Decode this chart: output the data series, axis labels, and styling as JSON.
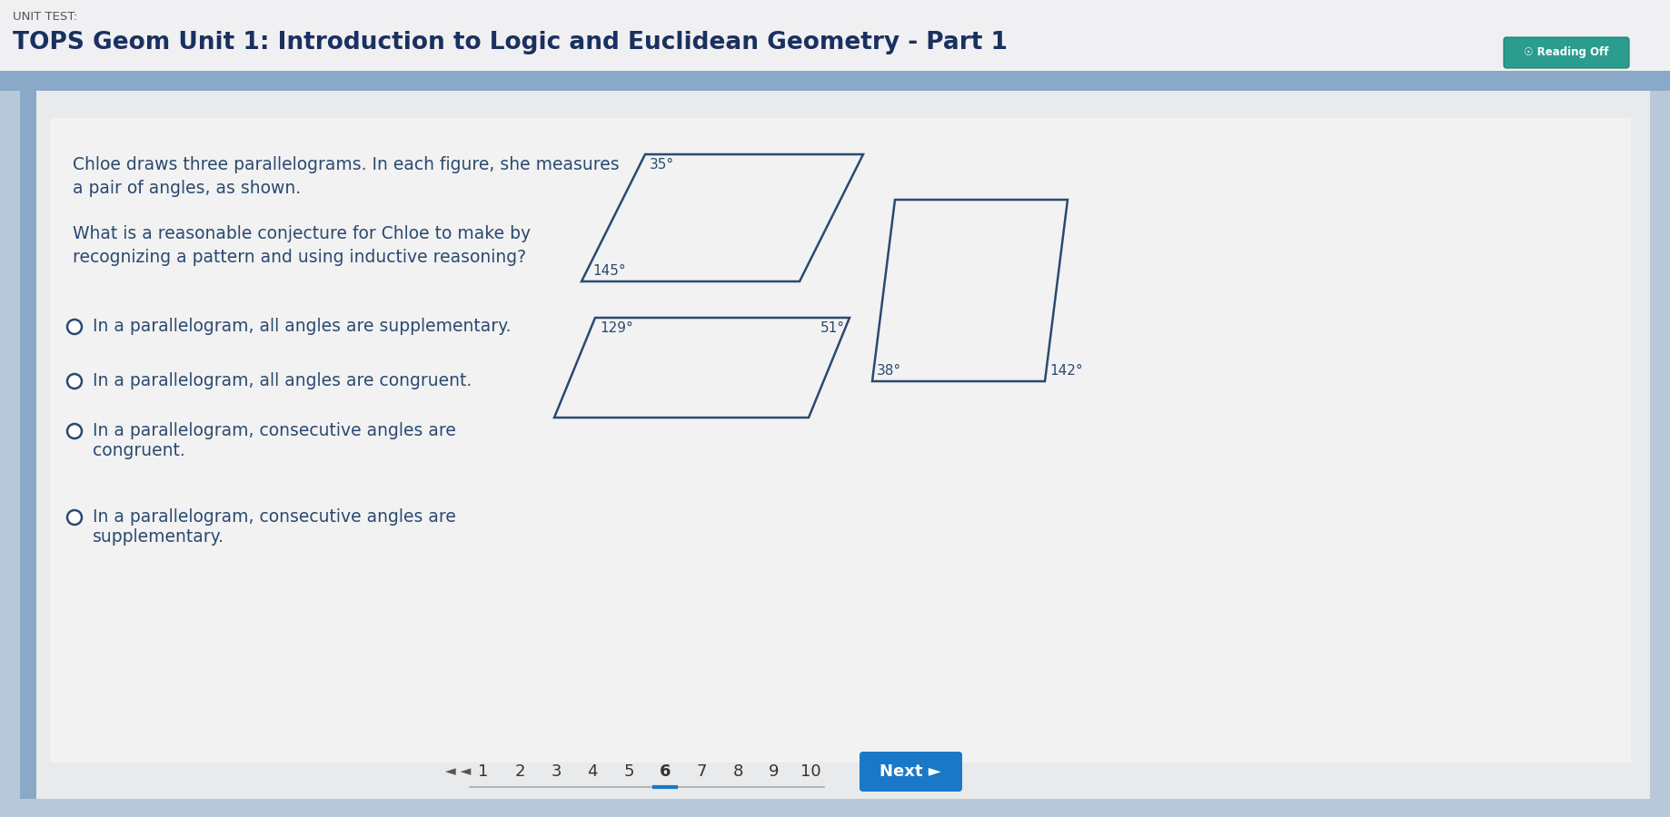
{
  "bg_color": "#b8c8d8",
  "outer_border_color": "#8aa0b8",
  "card_color": "#e8eaec",
  "inner_card_color": "#f2f2f2",
  "header_bg": "#f0f0f0",
  "unit_test_label": "UNIT TEST:",
  "title": "TOPS Geom Unit 1: Introduction to Logic and Euclidean Geometry - Part 1",
  "reading_btn_text": "☉ Reading Off",
  "question_text1": "Chloe draws three parallelograms. In each figure, she measures",
  "question_text2": "a pair of angles, as shown.",
  "prompt_text1": "What is a reasonable conjecture for Chloe to make by",
  "prompt_text2": "recognizing a pattern and using inductive reasoning?",
  "options": [
    "In a parallelogram, all angles are supplementary.",
    "In a parallelogram, all angles are congruent.",
    "In a parallelogram, consecutive angles are\ncongruent.",
    "In a parallelogram, consecutive angles are\nsupplementary."
  ],
  "para1_angles": [
    "35°",
    "145°"
  ],
  "para2_angles": [
    "129°",
    "51°"
  ],
  "para3_angles": [
    "38°",
    "142°"
  ],
  "page_numbers": [
    "1",
    "2",
    "3",
    "4",
    "5",
    "6",
    "7",
    "8",
    "9",
    "10"
  ],
  "current_page": "6",
  "next_btn_text": "Next ►",
  "text_color": "#2a4a70",
  "shape_color": "#2a4a70",
  "title_color": "#1a3060",
  "unit_label_color": "#555555",
  "reading_btn_color": "#2a9d8f",
  "next_btn_color": "#1a78c8",
  "page_underline_color": "#1a78c8",
  "page_num_color": "#333333",
  "nav_arrow_color": "#555555"
}
